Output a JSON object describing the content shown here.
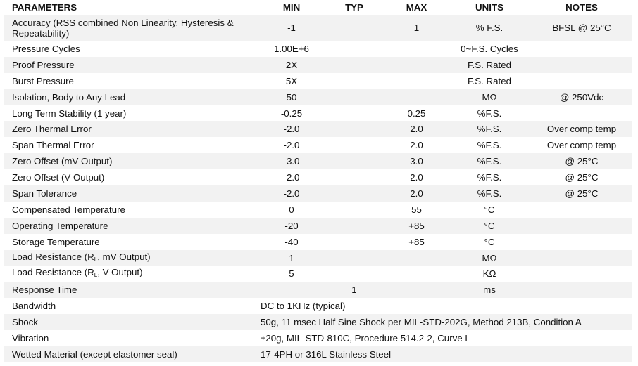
{
  "headers": {
    "parameters": "PARAMETERS",
    "min": "MIN",
    "typ": "TYP",
    "max": "MAX",
    "units": "UNITS",
    "notes": "NOTES"
  },
  "rows": [
    {
      "param": "Accuracy (RSS combined Non Linearity, Hysteresis & Repeatability)",
      "min": "-1",
      "typ": "",
      "max": "1",
      "units": "% F.S.",
      "notes": "BFSL @ 25°C"
    },
    {
      "param": "Pressure Cycles",
      "min": "1.00E+6",
      "typ": "",
      "max": "",
      "units": "0~F.S. Cycles",
      "notes": ""
    },
    {
      "param": "Proof Pressure",
      "min": "2X",
      "typ": "",
      "max": "",
      "units": "F.S. Rated",
      "notes": ""
    },
    {
      "param": "Burst Pressure",
      "min": "5X",
      "typ": "",
      "max": "",
      "units": "F.S. Rated",
      "notes": ""
    },
    {
      "param": "Isolation, Body to Any Lead",
      "min": "50",
      "typ": "",
      "max": "",
      "units": "MΩ",
      "notes": "@ 250Vdc"
    },
    {
      "param": "Long Term Stability (1 year)",
      "min": "-0.25",
      "typ": "",
      "max": "0.25",
      "units": "%F.S.",
      "notes": ""
    },
    {
      "param": "Zero Thermal Error",
      "min": "-2.0",
      "typ": "",
      "max": "2.0",
      "units": "%F.S.",
      "notes": "Over comp temp"
    },
    {
      "param": "Span Thermal Error",
      "min": "-2.0",
      "typ": "",
      "max": "2.0",
      "units": "%F.S.",
      "notes": "Over comp temp"
    },
    {
      "param": "Zero Offset (mV Output)",
      "min": "-3.0",
      "typ": "",
      "max": "3.0",
      "units": "%F.S.",
      "notes": "@ 25°C"
    },
    {
      "param": "Zero Offset (V Output)",
      "min": "-2.0",
      "typ": "",
      "max": "2.0",
      "units": "%F.S.",
      "notes": "@ 25°C"
    },
    {
      "param": "Span Tolerance",
      "min": "-2.0",
      "typ": "",
      "max": "2.0",
      "units": "%F.S.",
      "notes": "@ 25°C"
    },
    {
      "param": "Compensated Temperature",
      "min": "0",
      "typ": "",
      "max": "55",
      "units": "°C",
      "notes": ""
    },
    {
      "param": "Operating Temperature",
      "min": "-20",
      "typ": "",
      "max": "+85",
      "units": "°C",
      "notes": ""
    },
    {
      "param": "Storage Temperature",
      "min": "-40",
      "typ": "",
      "max": "+85",
      "units": "°C",
      "notes": ""
    },
    {
      "param_pre": "Load Resistance (R",
      "param_sub": "L",
      "param_post": ", mV Output)",
      "min": "1",
      "typ": "",
      "max": "",
      "units": "MΩ",
      "notes": ""
    },
    {
      "param_pre": "Load Resistance (R",
      "param_sub": "L",
      "param_post": ", V Output)",
      "min": "5",
      "typ": "",
      "max": "",
      "units": "KΩ",
      "notes": ""
    },
    {
      "param": "Response Time",
      "min": "",
      "typ": "1",
      "max": "",
      "units": "ms",
      "notes": ""
    }
  ],
  "span_rows": [
    {
      "param": "Bandwidth",
      "value": "DC to 1KHz (typical)"
    },
    {
      "param": "Shock",
      "value": "50g, 11 msec Half Sine Shock per MIL-STD-202G, Method 213B, Condition A"
    },
    {
      "param": "Vibration",
      "value": "±20g, MIL-STD-810C, Procedure 514.2-2, Curve L"
    },
    {
      "param": "Wetted Material (except elastomer seal)",
      "value": "17-4PH or 316L Stainless Steel"
    }
  ],
  "colors": {
    "stripe": "#f2f2f2",
    "text": "#111111"
  }
}
